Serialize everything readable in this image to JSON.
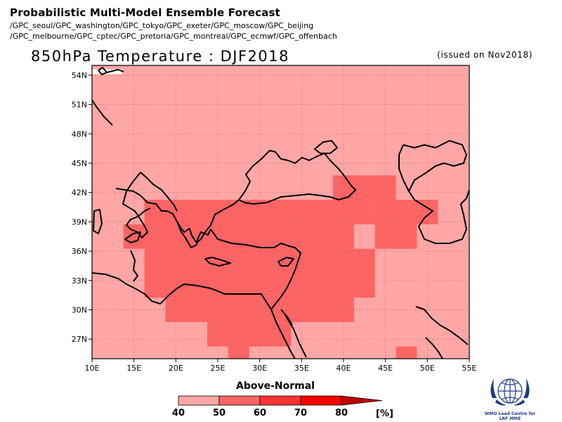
{
  "header": {
    "title": "Probabilistic Multi-Model Ensemble Forecast",
    "source_line1": "/GPC_seoul/GPC_washington/GPC_tokyo/GPC_exeter/GPC_moscow/GPC_beijing",
    "source_line2": "/GPC_melbourne/GPC_cptec/GPC_pretoria/GPC_montreal/GPC_ecmwf/GPC_offenbach"
  },
  "map": {
    "title": "850hPa Temperature : DJF2018",
    "issued": "(issued on Nov2018)",
    "lon_range": [
      10,
      55
    ],
    "lat_range": [
      25,
      55
    ],
    "lon_ticks": [
      "10E",
      "15E",
      "20E",
      "25E",
      "30E",
      "35E",
      "40E",
      "45E",
      "50E",
      "55E"
    ],
    "lat_ticks": [
      "27N",
      "30N",
      "33N",
      "36N",
      "39N",
      "42N",
      "45N",
      "48N",
      "51N",
      "54N"
    ],
    "grid_lines": true,
    "category_colors": [
      "#ffa6a6",
      "#fd6464",
      "#fb3333",
      "#fe0000",
      "#c20000"
    ]
  },
  "chart_data": {
    "type": "heatmap",
    "variable": "850hPa Temperature",
    "season": "DJF2018",
    "category": "Above-Normal",
    "units": "%",
    "class_breaks": [
      40,
      50,
      60,
      70,
      80
    ],
    "background_class": 0,
    "cells_class_1": [
      [
        13.75,
        36.25,
        16.25,
        38.75
      ],
      [
        16.25,
        36.25,
        43.75,
        41.25
      ],
      [
        38.75,
        41.25,
        46.25,
        43.75
      ],
      [
        43.75,
        38.75,
        51.25,
        41.25
      ],
      [
        43.75,
        36.25,
        48.75,
        38.75
      ],
      [
        16.25,
        31.25,
        43.75,
        36.25
      ],
      [
        18.75,
        28.75,
        41.25,
        31.25
      ],
      [
        23.75,
        26.25,
        33.75,
        28.75
      ],
      [
        26.25,
        23.75,
        28.75,
        26.25
      ],
      [
        46.25,
        23.75,
        48.75,
        26.25
      ]
    ],
    "cells_class_0_holes": [
      [
        41.25,
        36.25,
        43.75,
        38.75
      ]
    ]
  },
  "legend": {
    "title": "Above-Normal",
    "labels": [
      "40",
      "50",
      "60",
      "70",
      "80"
    ],
    "unit": "[%]"
  },
  "logo": {
    "caption_line1": "WMO Lead Centre for",
    "caption_line2": "LRF MME"
  }
}
